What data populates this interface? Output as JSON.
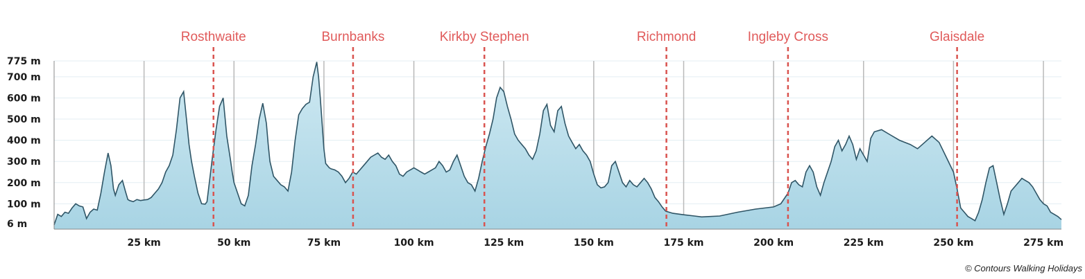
{
  "chart_data": {
    "type": "area",
    "xlim": [
      0,
      280
    ],
    "ylim": [
      -20,
      775
    ],
    "grid": true,
    "colors": {
      "fill_top": "#cfe9f2",
      "fill_bottom": "#a8d4e4",
      "line": "#2f5566",
      "marker": "#d9534f",
      "marker_label": "#e05a5a",
      "grid": "#e3eef3",
      "vgrid": "#b9b9b9"
    },
    "y_ticks": [
      {
        "value": 775,
        "label": "775 m"
      },
      {
        "value": 700,
        "label": "700 m"
      },
      {
        "value": 600,
        "label": "600 m"
      },
      {
        "value": 500,
        "label": "500 m"
      },
      {
        "value": 400,
        "label": "400 m"
      },
      {
        "value": 300,
        "label": "300 m"
      },
      {
        "value": 200,
        "label": "200 m"
      },
      {
        "value": 100,
        "label": "100 m"
      },
      {
        "value": 6,
        "label": "6 m"
      }
    ],
    "x_ticks": [
      {
        "value": 25,
        "label": "25 km"
      },
      {
        "value": 50,
        "label": "50 km"
      },
      {
        "value": 75,
        "label": "75 km"
      },
      {
        "value": 100,
        "label": "100 km"
      },
      {
        "value": 125,
        "label": "125 km"
      },
      {
        "value": 150,
        "label": "150 km"
      },
      {
        "value": 175,
        "label": "175 km"
      },
      {
        "value": 200,
        "label": "200 km"
      },
      {
        "value": 225,
        "label": "225 km"
      },
      {
        "value": 250,
        "label": "250 km"
      },
      {
        "value": 275,
        "label": "275 km"
      }
    ],
    "markers": [
      {
        "x": 44.3,
        "label": "Rosthwaite"
      },
      {
        "x": 83.1,
        "label": "Burnbanks"
      },
      {
        "x": 119.6,
        "label": "Kirkby Stephen"
      },
      {
        "x": 170.2,
        "label": "Richmond"
      },
      {
        "x": 204.0,
        "label": "Ingleby Cross"
      },
      {
        "x": 251.0,
        "label": "Glaisdale"
      }
    ],
    "series": [
      {
        "x": [
          0,
          1,
          2,
          3,
          4,
          5,
          6,
          7,
          8,
          9,
          10,
          11,
          12,
          13,
          14,
          15,
          15.8,
          16.5,
          17,
          18,
          19,
          19.8,
          20.5,
          21,
          22,
          23,
          24,
          25,
          26,
          27,
          28,
          29,
          30,
          31,
          32,
          33,
          34,
          35,
          36,
          36.8,
          37.5,
          38.2,
          39,
          40,
          41,
          42,
          42.5,
          43,
          44,
          45,
          46,
          47,
          48,
          49,
          49.5,
          50,
          51,
          52,
          53,
          54,
          55,
          56,
          57,
          58,
          59,
          59.5,
          60,
          61,
          62,
          63,
          64,
          65,
          66,
          67,
          68,
          69,
          70,
          71,
          72,
          73,
          73.5,
          74,
          75,
          75.5,
          76,
          76.5,
          77,
          78,
          79,
          80,
          81,
          82,
          83,
          84,
          85,
          86,
          87,
          88,
          89,
          90,
          91,
          92,
          93,
          94,
          95,
          96,
          97,
          98,
          99,
          100,
          101,
          102,
          103,
          104,
          105,
          106,
          107,
          108,
          109,
          110,
          111,
          112,
          113,
          114,
          115,
          116,
          117,
          118,
          119,
          120,
          121,
          122,
          123,
          124,
          125,
          126,
          127,
          128,
          129,
          130,
          131,
          132,
          133,
          134,
          135,
          136,
          137,
          138,
          139,
          140,
          141,
          142,
          143,
          144,
          145,
          146,
          147,
          148,
          149,
          150,
          151,
          152,
          153,
          154,
          155,
          156,
          157,
          158,
          159,
          160,
          161,
          162,
          163,
          164,
          165,
          166,
          167,
          168,
          169,
          170,
          172,
          175,
          178,
          180,
          185,
          190,
          195,
          200,
          202,
          204,
          205,
          206,
          207,
          208,
          209,
          210,
          211,
          212,
          213,
          214,
          215,
          216,
          217,
          218,
          219,
          220,
          221,
          222,
          223,
          224,
          225,
          226,
          227,
          228,
          230,
          232,
          235,
          238,
          240,
          242,
          244,
          246,
          248,
          250,
          251,
          252,
          253,
          254,
          255,
          256,
          257,
          258,
          259,
          260,
          261,
          262,
          263,
          264,
          265,
          266,
          267,
          268,
          269,
          270,
          271,
          272,
          273,
          274,
          275,
          276,
          277,
          278,
          279,
          280
        ],
        "values": [
          0,
          50,
          40,
          60,
          55,
          80,
          100,
          90,
          85,
          30,
          60,
          75,
          70,
          150,
          250,
          340,
          280,
          170,
          140,
          190,
          210,
          160,
          120,
          115,
          110,
          120,
          115,
          118,
          120,
          130,
          150,
          170,
          200,
          250,
          280,
          330,
          450,
          600,
          630,
          500,
          380,
          300,
          230,
          150,
          100,
          98,
          110,
          180,
          320,
          450,
          560,
          600,
          420,
          310,
          250,
          200,
          150,
          100,
          90,
          140,
          280,
          380,
          500,
          575,
          480,
          380,
          300,
          230,
          210,
          190,
          180,
          160,
          250,
          400,
          520,
          550,
          570,
          580,
          700,
          770,
          700,
          600,
          360,
          290,
          280,
          270,
          265,
          260,
          250,
          230,
          200,
          220,
          250,
          240,
          260,
          280,
          300,
          320,
          330,
          340,
          320,
          310,
          330,
          300,
          280,
          240,
          230,
          250,
          260,
          270,
          260,
          250,
          240,
          250,
          260,
          270,
          300,
          280,
          250,
          260,
          300,
          330,
          280,
          230,
          200,
          190,
          160,
          220,
          300,
          370,
          430,
          500,
          600,
          650,
          630,
          560,
          500,
          430,
          400,
          380,
          360,
          330,
          310,
          350,
          430,
          540,
          570,
          470,
          440,
          540,
          560,
          480,
          420,
          390,
          360,
          380,
          350,
          330,
          300,
          240,
          190,
          175,
          180,
          200,
          280,
          300,
          250,
          200,
          180,
          210,
          190,
          180,
          200,
          220,
          200,
          170,
          130,
          110,
          85,
          65,
          55,
          48,
          42,
          38,
          42,
          60,
          75,
          85,
          100,
          150,
          200,
          210,
          190,
          180,
          250,
          280,
          250,
          180,
          140,
          200,
          250,
          300,
          370,
          400,
          350,
          380,
          420,
          380,
          310,
          360,
          330,
          300,
          410,
          440,
          450,
          430,
          400,
          380,
          360,
          390,
          420,
          390,
          320,
          250,
          170,
          80,
          60,
          40,
          30,
          20,
          60,
          120,
          200,
          270,
          280,
          200,
          120,
          50,
          100,
          160,
          180,
          200,
          220,
          210,
          200,
          180,
          150,
          120,
          100,
          90,
          60,
          50,
          40,
          25
        ]
      }
    ]
  },
  "copyright": "© Contours Walking Holidays"
}
